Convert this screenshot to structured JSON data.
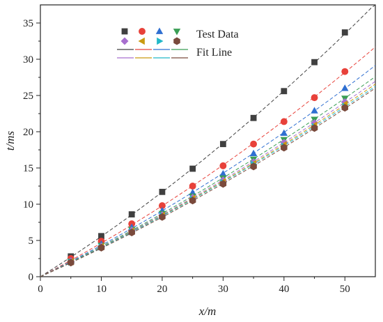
{
  "chart_data": {
    "type": "scatter",
    "xlabel": "x/m",
    "ylabel": "t/ms",
    "xlim": [
      0,
      55
    ],
    "ylim": [
      0,
      37.5
    ],
    "xticks": [
      0,
      10,
      20,
      30,
      40,
      50
    ],
    "xticks_minor": [
      5,
      15,
      25,
      35,
      45
    ],
    "yticks": [
      0,
      5,
      10,
      15,
      20,
      25,
      30,
      35
    ],
    "grid": false,
    "legend": {
      "placement": "top-center",
      "entries": [
        "Test Data",
        "Fit Line"
      ]
    },
    "x": [
      5,
      10,
      15,
      20,
      25,
      30,
      35,
      40,
      45,
      50
    ],
    "series": [
      {
        "marker": "square",
        "color": "#404040",
        "values": [
          2.8,
          5.6,
          8.6,
          11.7,
          14.9,
          18.3,
          21.9,
          25.6,
          29.6,
          33.7
        ],
        "fit_at_xmax": 37.5
      },
      {
        "marker": "circle",
        "color": "#e8413a",
        "values": [
          2.5,
          4.9,
          7.3,
          9.8,
          12.5,
          15.3,
          18.3,
          21.4,
          24.7,
          28.3
        ],
        "fit_at_xmax": 31.8
      },
      {
        "marker": "triangle-up",
        "color": "#2f6fd1",
        "values": [
          2.2,
          4.5,
          6.8,
          9.1,
          11.6,
          14.2,
          17.0,
          19.8,
          22.9,
          26.0
        ],
        "fit_at_xmax": 29.2
      },
      {
        "marker": "triangle-down",
        "color": "#3a9e55",
        "values": [
          2.1,
          4.3,
          6.5,
          8.7,
          11.1,
          13.6,
          16.2,
          18.9,
          21.7,
          24.6
        ],
        "fit_at_xmax": 27.7
      },
      {
        "marker": "diamond",
        "color": "#a86fcf",
        "values": [
          2.1,
          4.2,
          6.4,
          8.5,
          10.9,
          13.3,
          15.8,
          18.5,
          21.2,
          24.1
        ],
        "fit_at_xmax": 27.0
      },
      {
        "marker": "triangle-left",
        "color": "#c99a10",
        "values": [
          2.05,
          4.15,
          6.3,
          8.45,
          10.8,
          13.1,
          15.6,
          18.2,
          20.9,
          23.8
        ],
        "fit_at_xmax": 26.6
      },
      {
        "marker": "triangle-right",
        "color": "#22b8c8",
        "values": [
          2.0,
          4.1,
          6.2,
          8.4,
          10.7,
          13.0,
          15.5,
          18.0,
          20.7,
          23.5
        ],
        "fit_at_xmax": 26.3
      },
      {
        "marker": "hexagon",
        "color": "#7a4a3c",
        "values": [
          1.95,
          4.0,
          6.1,
          8.25,
          10.5,
          12.8,
          15.2,
          17.8,
          20.5,
          23.3
        ],
        "fit_at_xmax": 26.0
      }
    ]
  }
}
